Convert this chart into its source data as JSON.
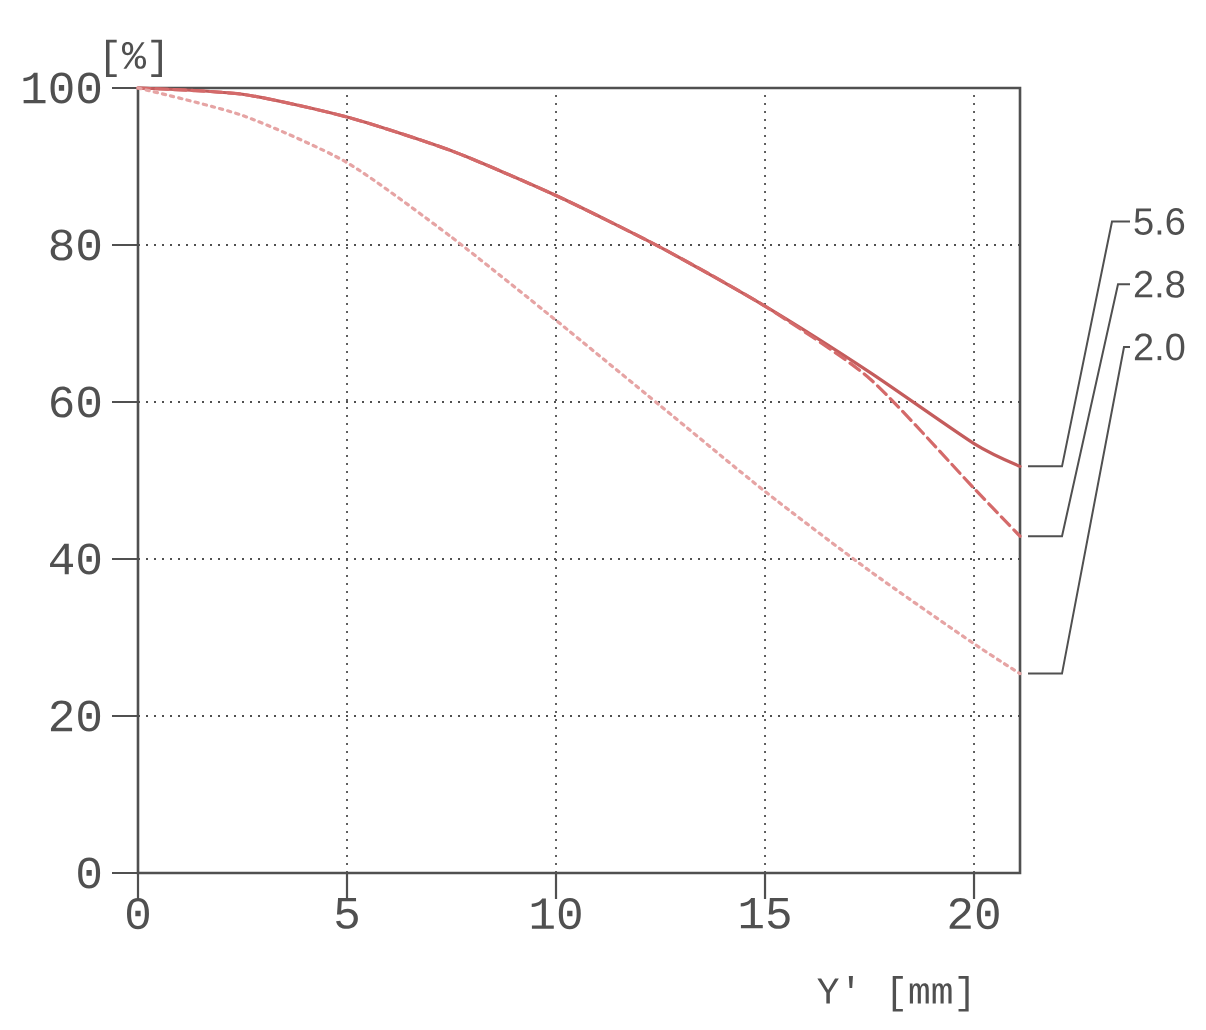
{
  "chart_data": {
    "type": "line",
    "ylabel": "[%]",
    "xlabel": "Y' [mm]",
    "x": [
      0,
      2.5,
      5,
      7.5,
      10,
      12.5,
      15,
      17.5,
      20,
      21.1
    ],
    "series": [
      {
        "name": "5.6",
        "color": "#c45c5c",
        "line_style": "solid",
        "values": [
          100,
          99.2,
          96.3,
          92,
          86.3,
          79.7,
          72.2,
          63.8,
          54.7,
          51.8
        ]
      },
      {
        "name": "2.8",
        "color": "#d46a6a",
        "line_style": "dashed",
        "values": [
          100,
          99.2,
          96.3,
          92,
          86.3,
          79.7,
          72.2,
          63,
          49,
          42.9
        ]
      },
      {
        "name": "2.0",
        "color": "#e6a4a4",
        "line_style": "dotted",
        "values": [
          100,
          96.5,
          90.5,
          81,
          70.4,
          59.5,
          48.6,
          38.5,
          29.2,
          25.4
        ]
      }
    ],
    "xlim": [
      0,
      21.1
    ],
    "ylim": [
      0,
      100
    ],
    "xticks": [
      0,
      5,
      10,
      15,
      20
    ],
    "yticks": [
      0,
      20,
      40,
      60,
      80,
      100
    ],
    "grid": true
  }
}
